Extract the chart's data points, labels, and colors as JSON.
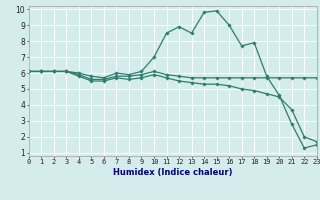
{
  "title": "",
  "xlabel": "Humidex (Indice chaleur)",
  "ylabel": "",
  "bg_color": "#d4ecec",
  "grid_color": "#ffffff",
  "line_color": "#2e7d6e",
  "lines": [
    {
      "x": [
        0,
        1,
        2,
        3,
        4,
        5,
        6,
        7,
        8,
        9,
        10,
        11,
        12,
        13,
        14,
        15,
        16,
        17,
        18,
        19,
        20,
        21,
        22,
        23
      ],
      "y": [
        6.1,
        6.1,
        6.1,
        6.1,
        6.0,
        5.8,
        5.7,
        6.0,
        5.9,
        6.1,
        7.0,
        8.5,
        8.9,
        8.5,
        9.8,
        9.9,
        9.0,
        7.7,
        7.9,
        5.8,
        4.6,
        2.8,
        1.3,
        1.5
      ]
    },
    {
      "x": [
        0,
        1,
        2,
        3,
        4,
        5,
        6,
        7,
        8,
        9,
        10,
        11,
        12,
        13,
        14,
        15,
        16,
        17,
        18,
        19,
        20,
        21,
        22,
        23
      ],
      "y": [
        6.1,
        6.1,
        6.1,
        6.1,
        5.9,
        5.6,
        5.6,
        5.8,
        5.8,
        5.9,
        6.1,
        5.9,
        5.8,
        5.7,
        5.7,
        5.7,
        5.7,
        5.7,
        5.7,
        5.7,
        5.7,
        5.7,
        5.7,
        5.7
      ]
    },
    {
      "x": [
        0,
        1,
        2,
        3,
        4,
        5,
        6,
        7,
        8,
        9,
        10,
        11,
        12,
        13,
        14,
        15,
        16,
        17,
        18,
        19,
        20,
        21,
        22,
        23
      ],
      "y": [
        6.1,
        6.1,
        6.1,
        6.1,
        5.8,
        5.5,
        5.5,
        5.7,
        5.6,
        5.7,
        5.9,
        5.7,
        5.5,
        5.4,
        5.3,
        5.3,
        5.2,
        5.0,
        4.9,
        4.7,
        4.5,
        3.7,
        2.0,
        1.7
      ]
    }
  ],
  "xlim": [
    0,
    23
  ],
  "ylim": [
    0.8,
    10.2
  ],
  "yticks": [
    1,
    2,
    3,
    4,
    5,
    6,
    7,
    8,
    9,
    10
  ],
  "xticks": [
    0,
    1,
    2,
    3,
    4,
    5,
    6,
    7,
    8,
    9,
    10,
    11,
    12,
    13,
    14,
    15,
    16,
    17,
    18,
    19,
    20,
    21,
    22,
    23
  ],
  "marker": "D",
  "marker_size": 1.8,
  "linewidth": 0.9,
  "tick_fontsize": 5.0,
  "xlabel_fontsize": 6.0,
  "xlabel_color": "#000080"
}
